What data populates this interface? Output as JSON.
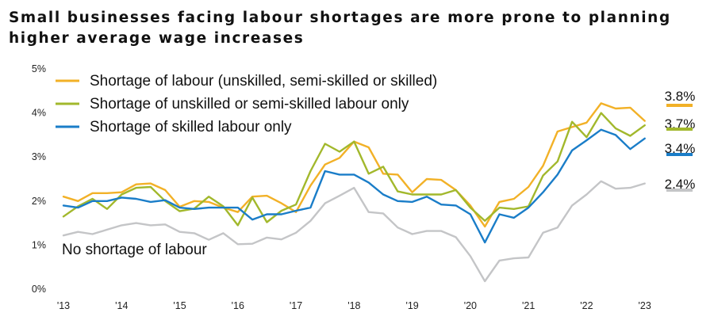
{
  "chart_data": {
    "type": "line",
    "title": "Small businesses facing labour shortages are more prone to planning higher average wage increases",
    "x_tick_labels": [
      "'13",
      "'14",
      "'15",
      "'16",
      "'17",
      "'18",
      "'19",
      "'20",
      "'21",
      "'22",
      "'23"
    ],
    "y_tick_labels": [
      "0%",
      "1%",
      "2%",
      "3%",
      "4%",
      "5%"
    ],
    "ylim": [
      0,
      5
    ],
    "xlim": [
      2013,
      2023.1
    ],
    "legend_position": "top-left",
    "grid": false,
    "annotation": "No shortage of labour",
    "series": [
      {
        "name": "Shortage of labour (unskilled, semi-skilled or skilled)",
        "color": "#F2B127",
        "end_label": "3.8%",
        "points": [
          [
            2013,
            2.1
          ],
          [
            2013.25,
            2.0
          ],
          [
            2013.5,
            2.18
          ],
          [
            2013.75,
            2.18
          ],
          [
            2014,
            2.2
          ],
          [
            2014.25,
            2.38
          ],
          [
            2014.5,
            2.4
          ],
          [
            2014.75,
            2.25
          ],
          [
            2015,
            1.87
          ],
          [
            2015.25,
            2.0
          ],
          [
            2015.5,
            1.98
          ],
          [
            2015.75,
            1.85
          ],
          [
            2016,
            1.75
          ],
          [
            2016.25,
            2.1
          ],
          [
            2016.5,
            2.12
          ],
          [
            2016.75,
            1.95
          ],
          [
            2017,
            1.75
          ],
          [
            2017.25,
            2.35
          ],
          [
            2017.5,
            2.83
          ],
          [
            2017.75,
            2.98
          ],
          [
            2018,
            3.35
          ],
          [
            2018.25,
            3.22
          ],
          [
            2018.5,
            2.62
          ],
          [
            2018.75,
            2.6
          ],
          [
            2019,
            2.2
          ],
          [
            2019.25,
            2.5
          ],
          [
            2019.5,
            2.48
          ],
          [
            2019.75,
            2.25
          ],
          [
            2020,
            1.9
          ],
          [
            2020.25,
            1.42
          ],
          [
            2020.5,
            1.98
          ],
          [
            2020.75,
            2.05
          ],
          [
            2021,
            2.32
          ],
          [
            2021.25,
            2.8
          ],
          [
            2021.5,
            3.58
          ],
          [
            2021.75,
            3.68
          ],
          [
            2022,
            3.78
          ],
          [
            2022.25,
            4.22
          ],
          [
            2022.5,
            4.1
          ],
          [
            2022.75,
            4.12
          ],
          [
            2023,
            3.82
          ]
        ]
      },
      {
        "name": "Shortage of unskilled or semi-skilled labour only",
        "color": "#A2B82C",
        "end_label": "3.7%",
        "points": [
          [
            2013,
            1.65
          ],
          [
            2013.25,
            1.88
          ],
          [
            2013.5,
            2.05
          ],
          [
            2013.75,
            1.82
          ],
          [
            2014,
            2.15
          ],
          [
            2014.25,
            2.3
          ],
          [
            2014.5,
            2.32
          ],
          [
            2014.75,
            2.0
          ],
          [
            2015,
            1.77
          ],
          [
            2015.25,
            1.83
          ],
          [
            2015.5,
            2.1
          ],
          [
            2015.75,
            1.88
          ],
          [
            2016,
            1.45
          ],
          [
            2016.25,
            2.08
          ],
          [
            2016.5,
            1.52
          ],
          [
            2016.75,
            1.78
          ],
          [
            2017,
            1.92
          ],
          [
            2017.25,
            2.68
          ],
          [
            2017.5,
            3.3
          ],
          [
            2017.75,
            3.12
          ],
          [
            2018,
            3.35
          ],
          [
            2018.25,
            2.62
          ],
          [
            2018.5,
            2.78
          ],
          [
            2018.75,
            2.22
          ],
          [
            2019,
            2.15
          ],
          [
            2019.25,
            2.15
          ],
          [
            2019.5,
            2.15
          ],
          [
            2019.75,
            2.25
          ],
          [
            2020,
            1.85
          ],
          [
            2020.25,
            1.55
          ],
          [
            2020.5,
            1.85
          ],
          [
            2020.75,
            1.82
          ],
          [
            2021,
            1.88
          ],
          [
            2021.25,
            2.58
          ],
          [
            2021.5,
            2.9
          ],
          [
            2021.75,
            3.8
          ],
          [
            2022,
            3.45
          ],
          [
            2022.25,
            4.0
          ],
          [
            2022.5,
            3.65
          ],
          [
            2022.75,
            3.48
          ],
          [
            2023,
            3.72
          ]
        ]
      },
      {
        "name": "Shortage of skilled labour only",
        "color": "#1A7DC8",
        "end_label": "3.4%",
        "points": [
          [
            2013,
            1.9
          ],
          [
            2013.25,
            1.85
          ],
          [
            2013.5,
            2.0
          ],
          [
            2013.75,
            2.0
          ],
          [
            2014,
            2.08
          ],
          [
            2014.25,
            2.05
          ],
          [
            2014.5,
            1.98
          ],
          [
            2014.75,
            2.02
          ],
          [
            2015,
            1.85
          ],
          [
            2015.25,
            1.82
          ],
          [
            2015.5,
            1.85
          ],
          [
            2015.75,
            1.85
          ],
          [
            2016,
            1.85
          ],
          [
            2016.25,
            1.58
          ],
          [
            2016.5,
            1.7
          ],
          [
            2016.75,
            1.7
          ],
          [
            2017,
            1.78
          ],
          [
            2017.25,
            1.85
          ],
          [
            2017.5,
            2.68
          ],
          [
            2017.75,
            2.6
          ],
          [
            2018,
            2.6
          ],
          [
            2018.25,
            2.42
          ],
          [
            2018.5,
            2.15
          ],
          [
            2018.75,
            2.0
          ],
          [
            2019,
            1.98
          ],
          [
            2019.25,
            2.1
          ],
          [
            2019.5,
            1.92
          ],
          [
            2019.75,
            1.9
          ],
          [
            2020,
            1.7
          ],
          [
            2020.25,
            1.06
          ],
          [
            2020.5,
            1.7
          ],
          [
            2020.75,
            1.62
          ],
          [
            2021,
            1.85
          ],
          [
            2021.25,
            2.2
          ],
          [
            2021.5,
            2.6
          ],
          [
            2021.75,
            3.15
          ],
          [
            2022,
            3.38
          ],
          [
            2022.25,
            3.62
          ],
          [
            2022.5,
            3.5
          ],
          [
            2022.75,
            3.18
          ],
          [
            2023,
            3.42
          ]
        ]
      },
      {
        "name": "No shortage of labour",
        "color": "#C4C5C7",
        "end_label": "2.4%",
        "points": [
          [
            2013,
            1.22
          ],
          [
            2013.25,
            1.3
          ],
          [
            2013.5,
            1.25
          ],
          [
            2013.75,
            1.35
          ],
          [
            2014,
            1.45
          ],
          [
            2014.25,
            1.5
          ],
          [
            2014.5,
            1.45
          ],
          [
            2014.75,
            1.47
          ],
          [
            2015,
            1.3
          ],
          [
            2015.25,
            1.27
          ],
          [
            2015.5,
            1.12
          ],
          [
            2015.75,
            1.27
          ],
          [
            2016,
            1.02
          ],
          [
            2016.25,
            1.03
          ],
          [
            2016.5,
            1.17
          ],
          [
            2016.75,
            1.13
          ],
          [
            2017,
            1.28
          ],
          [
            2017.25,
            1.55
          ],
          [
            2017.5,
            1.95
          ],
          [
            2017.75,
            2.12
          ],
          [
            2018,
            2.3
          ],
          [
            2018.25,
            1.75
          ],
          [
            2018.5,
            1.72
          ],
          [
            2018.75,
            1.4
          ],
          [
            2019,
            1.25
          ],
          [
            2019.25,
            1.32
          ],
          [
            2019.5,
            1.32
          ],
          [
            2019.75,
            1.18
          ],
          [
            2020,
            0.75
          ],
          [
            2020.25,
            0.18
          ],
          [
            2020.5,
            0.65
          ],
          [
            2020.75,
            0.7
          ],
          [
            2021,
            0.72
          ],
          [
            2021.25,
            1.28
          ],
          [
            2021.5,
            1.4
          ],
          [
            2021.75,
            1.9
          ],
          [
            2022,
            2.15
          ],
          [
            2022.25,
            2.45
          ],
          [
            2022.5,
            2.28
          ],
          [
            2022.75,
            2.3
          ],
          [
            2023,
            2.4
          ]
        ]
      }
    ]
  }
}
